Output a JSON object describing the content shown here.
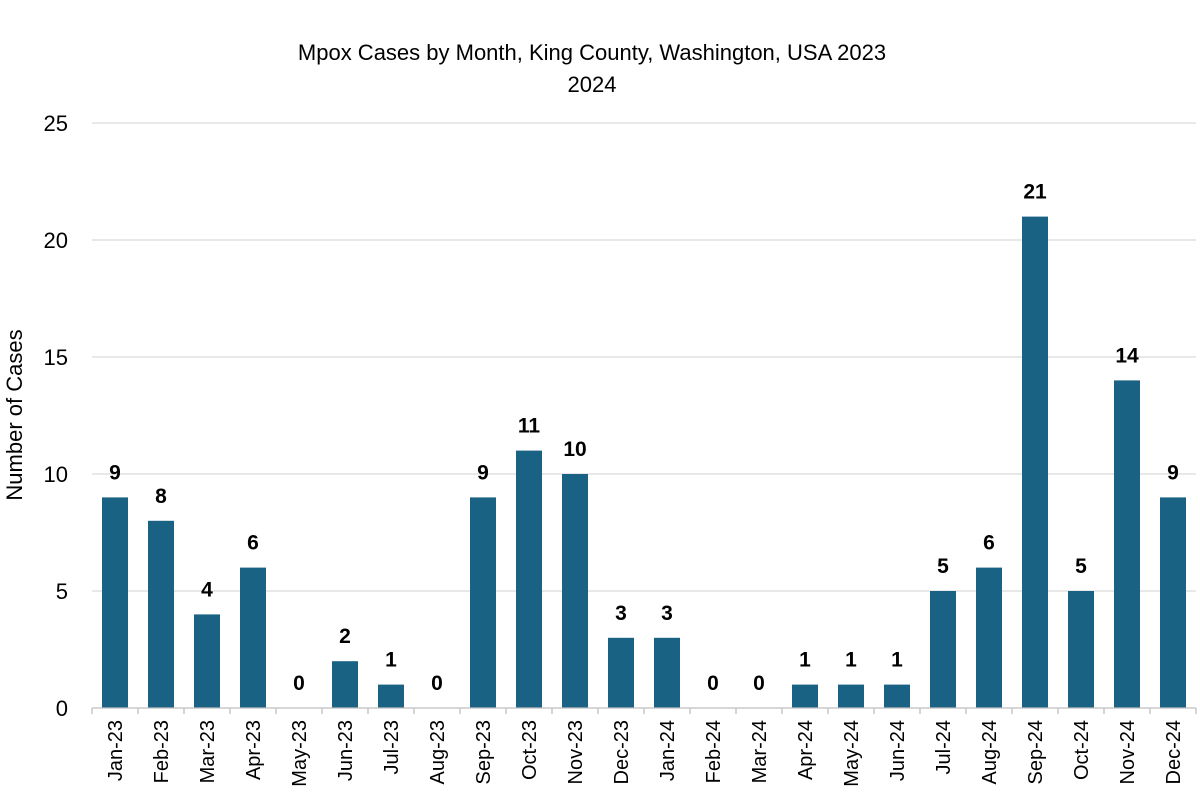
{
  "chart_data": {
    "type": "bar",
    "title": "Mpox Cases by Month, King County, Washington, USA 2023",
    "subtitle": "2024",
    "xlabel": "",
    "ylabel": "Number of Cases",
    "ylim": [
      0,
      25
    ],
    "yticks": [
      0,
      5,
      10,
      15,
      20,
      25
    ],
    "grid": true,
    "bar_color": "#1a6283",
    "categories": [
      "Jan-23",
      "Feb-23",
      "Mar-23",
      "Apr-23",
      "May-23",
      "Jun-23",
      "Jul-23",
      "Aug-23",
      "Sep-23",
      "Oct-23",
      "Nov-23",
      "Dec-23",
      "Jan-24",
      "Feb-24",
      "Mar-24",
      "Apr-24",
      "May-24",
      "Jun-24",
      "Jul-24",
      "Aug-24",
      "Sep-24",
      "Oct-24",
      "Nov-24",
      "Dec-24"
    ],
    "values": [
      9,
      8,
      4,
      6,
      0,
      2,
      1,
      0,
      9,
      11,
      10,
      3,
      3,
      0,
      0,
      1,
      1,
      1,
      5,
      6,
      21,
      5,
      14,
      9
    ]
  }
}
